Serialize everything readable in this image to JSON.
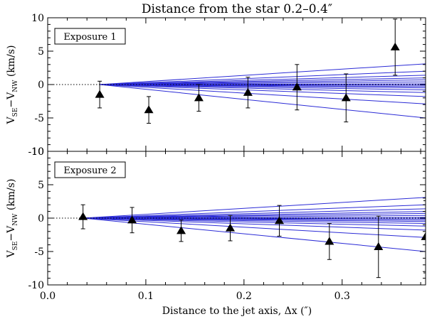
{
  "figure": {
    "title": "Distance from the star 0.2–0.4″",
    "xlabel": "Distance to the jet axis, Δx (″)"
  },
  "chart_data": [
    {
      "type": "scatter",
      "panel_label": "Exposure 1",
      "ylabel_main": "V",
      "ylabel_sub1": "SE",
      "ylabel_mid": "−V",
      "ylabel_sub2": "NW",
      "ylabel_unit": " (km/s)",
      "xlim": [
        0.0,
        0.385
      ],
      "ylim": [
        -10,
        10
      ],
      "x_ticks": [
        0.0,
        0.1,
        0.2,
        0.3
      ],
      "y_ticks": [
        -10,
        -5,
        0,
        5,
        10
      ],
      "zero_line": true,
      "points": [
        {
          "x": 0.053,
          "y": -1.5,
          "err_low": 2.0,
          "err_high": 2.0
        },
        {
          "x": 0.103,
          "y": -3.8,
          "err_low": 2.0,
          "err_high": 2.0
        },
        {
          "x": 0.154,
          "y": -2.0,
          "err_low": 2.0,
          "err_high": 2.0
        },
        {
          "x": 0.204,
          "y": -1.2,
          "err_low": 2.3,
          "err_high": 2.3
        },
        {
          "x": 0.254,
          "y": -0.4,
          "err_low": 3.4,
          "err_high": 3.4
        },
        {
          "x": 0.304,
          "y": -2.0,
          "err_low": 3.6,
          "err_high": 3.6
        },
        {
          "x": 0.354,
          "y": 5.6,
          "err_low": 4.2,
          "err_high": 4.2
        }
      ],
      "model_lines_end_y": [
        -5.0,
        -2.9,
        -1.8,
        -1.2,
        -0.8,
        -0.5,
        -0.3,
        -0.1,
        0.1,
        0.4,
        0.7,
        1.0,
        1.4,
        2.0,
        3.1
      ]
    },
    {
      "type": "scatter",
      "panel_label": "Exposure 2",
      "ylabel_main": "V",
      "ylabel_sub1": "SE",
      "ylabel_mid": "−V",
      "ylabel_sub2": "NW",
      "ylabel_unit": " (km/s)",
      "xlim": [
        0.0,
        0.385
      ],
      "ylim": [
        -10,
        10
      ],
      "x_ticks": [
        0.0,
        0.1,
        0.2,
        0.3
      ],
      "y_ticks": [
        -10,
        -5,
        0,
        5,
        10
      ],
      "zero_line": true,
      "points": [
        {
          "x": 0.036,
          "y": 0.2,
          "err_low": 1.8,
          "err_high": 1.8
        },
        {
          "x": 0.086,
          "y": -0.3,
          "err_low": 1.9,
          "err_high": 1.9
        },
        {
          "x": 0.136,
          "y": -1.9,
          "err_low": 1.6,
          "err_high": 1.6
        },
        {
          "x": 0.186,
          "y": -1.5,
          "err_low": 1.9,
          "err_high": 1.9
        },
        {
          "x": 0.236,
          "y": -0.4,
          "err_low": 2.3,
          "err_high": 2.3
        },
        {
          "x": 0.287,
          "y": -3.5,
          "err_low": 2.7,
          "err_high": 2.7
        },
        {
          "x": 0.337,
          "y": -4.3,
          "err_low": 4.6,
          "err_high": 4.6
        },
        {
          "x": 0.385,
          "y": -2.8,
          "err_low": 5.4,
          "err_high": 5.4
        }
      ],
      "model_lines_end_y": [
        -5.0,
        -2.9,
        -1.8,
        -1.2,
        -0.8,
        -0.5,
        -0.3,
        -0.1,
        0.1,
        0.4,
        0.7,
        1.0,
        1.4,
        2.0,
        3.1
      ]
    }
  ],
  "colors": {
    "model_line": "#2b2bd6",
    "axis": "#000000",
    "marker": "#000000"
  }
}
